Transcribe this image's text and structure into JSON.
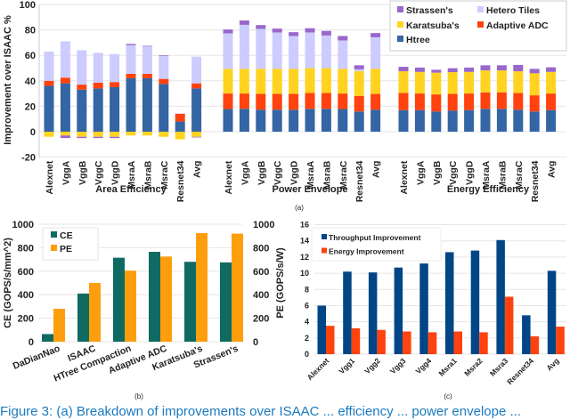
{
  "chart_data": [
    {
      "type": "bar",
      "stacked": true,
      "label": "(a)",
      "ylabel": "Improvement over ISAAC %",
      "ylim": [
        -20,
        100
      ],
      "yticks": [
        -20,
        0,
        20,
        40,
        60,
        80,
        100
      ],
      "grid": true,
      "legend_position": "top-right",
      "series_order": [
        "Strassen's",
        "Hetero Tiles",
        "Karatsuba's",
        "Adaptive ADC",
        "Htree"
      ],
      "colors": {
        "Htree": "#3465a4",
        "Adaptive ADC": "#ff420e",
        "Karatsuba's": "#ffd320",
        "Hetero Tiles": "#ccccff",
        "Strassen's": "#9966cc"
      },
      "categories": [
        "Alexnet",
        "VggA",
        "VggB",
        "VggC",
        "VggD",
        "MsraA",
        "MsraB",
        "MsraC",
        "Resnet34",
        "Avg"
      ],
      "groups": [
        {
          "name": "Area Efficiency",
          "series": [
            {
              "name": "Htree",
              "values": [
                36,
                38,
                33,
                34,
                35,
                42,
                42,
                37.5,
                8,
                34
              ]
            },
            {
              "name": "Adaptive ADC",
              "values": [
                4,
                4.5,
                4,
                4.5,
                4,
                3.5,
                3.5,
                4,
                6,
                4
              ]
            },
            {
              "name": "Hetero Tiles",
              "values": [
                23,
                28.5,
                27,
                23.5,
                22,
                22.5,
                21.5,
                18,
                0.5,
                21
              ]
            },
            {
              "name": "Strassen's",
              "values": [
                0,
                -2,
                -1,
                -1,
                -1,
                1,
                0.5,
                0.5,
                0,
                -0.5
              ]
            },
            {
              "name": "Karatsuba's",
              "values": [
                -4,
                -3,
                -4,
                -4,
                -4,
                -3,
                -3,
                -4,
                -6,
                -4
              ]
            }
          ]
        },
        {
          "name": "Power Envelope",
          "series": [
            {
              "name": "Htree",
              "values": [
                17.8,
                18,
                17.3,
                17.3,
                17.3,
                18,
                18,
                17.8,
                15.9,
                17.3
              ]
            },
            {
              "name": "Adaptive ADC",
              "values": [
                12.2,
                12,
                12.4,
                12.4,
                12.4,
                12.4,
                12.4,
                12.2,
                12.2,
                12.4
              ]
            },
            {
              "name": "Karatsuba's",
              "values": [
                19.4,
                19.4,
                19.7,
                19.7,
                19.7,
                19.5,
                19.5,
                19.4,
                19.4,
                19.7
              ]
            },
            {
              "name": "Hetero Tiles",
              "values": [
                27.9,
                34.6,
                31.4,
                28.6,
                25.8,
                28.1,
                25.7,
                22.3,
                1.5,
                24.8
              ]
            },
            {
              "name": "Strassen's",
              "values": [
                3,
                3.4,
                3,
                3,
                3,
                3.3,
                3.6,
                3.5,
                3.2,
                3.3
              ]
            }
          ]
        },
        {
          "name": "Energy Efficiency",
          "series": [
            {
              "name": "Htree",
              "values": [
                17,
                17,
                15.9,
                16.6,
                17,
                18,
                18,
                17.3,
                15.9,
                17
              ]
            },
            {
              "name": "Adaptive ADC",
              "values": [
                13.4,
                13,
                13.4,
                13.1,
                13,
                12.9,
                12.9,
                13.1,
                12.7,
                13
              ]
            },
            {
              "name": "Karatsuba's",
              "values": [
                17.1,
                17,
                17.1,
                17.1,
                17,
                17.3,
                17.3,
                17.1,
                17.3,
                17
              ]
            },
            {
              "name": "Hetero Tiles",
              "values": [
                0,
                0,
                0,
                0,
                0,
                0,
                0,
                0,
                0,
                0
              ]
            },
            {
              "name": "Strassen's",
              "values": [
                3.5,
                3.4,
                2.3,
                3.1,
                3.4,
                4,
                4,
                5,
                3.5,
                3.6
              ]
            }
          ]
        }
      ]
    },
    {
      "type": "bar",
      "label": "(b)",
      "ylabel": "CE (GOPS/s/mm^2)",
      "y2label": "PE (GOPS/s/W)",
      "ylim": [
        0,
        1000
      ],
      "y2lim": [
        0,
        1000
      ],
      "yticks": [
        0,
        200,
        400,
        600,
        800,
        1000
      ],
      "grid": true,
      "legend_position": "top-left",
      "categories": [
        "DaDianNao",
        "ISAAC",
        "HTree Compaction",
        "Adaptive ADC",
        "Karatsuba's",
        "Strassen's"
      ],
      "series": [
        {
          "name": "CE",
          "axis": "left",
          "color": "#0f6b62",
          "values": [
            65,
            410,
            715,
            765,
            680,
            675
          ]
        },
        {
          "name": "PE",
          "axis": "right",
          "color": "#ff9e0d",
          "values": [
            280,
            500,
            605,
            725,
            925,
            920
          ]
        }
      ]
    },
    {
      "type": "bar",
      "label": "(c)",
      "ylim": [
        0,
        16
      ],
      "yticks": [
        0,
        2,
        4,
        6,
        8,
        10,
        12,
        14,
        16
      ],
      "grid": true,
      "legend_position": "top-left",
      "categories": [
        "Alexnet",
        "Vgg1",
        "Vgg2",
        "Vgg3",
        "Vgg4",
        "Msra1",
        "Msra2",
        "Msra3",
        "Resnet34",
        "Avg"
      ],
      "series": [
        {
          "name": "Throughput Improvement",
          "color": "#004586",
          "values": [
            6.0,
            10.2,
            10.1,
            10.7,
            11.2,
            12.6,
            12.8,
            14.1,
            4.8,
            10.3
          ]
        },
        {
          "name": "Energy Improvement",
          "color": "#ff420e",
          "values": [
            3.5,
            3.2,
            3.0,
            2.8,
            2.7,
            2.8,
            2.7,
            7.1,
            2.2,
            3.4
          ]
        }
      ]
    }
  ],
  "caption": "Figure 3: (a) Breakdown of improvements over ISAAC ... efficiency ... power envelope ..."
}
